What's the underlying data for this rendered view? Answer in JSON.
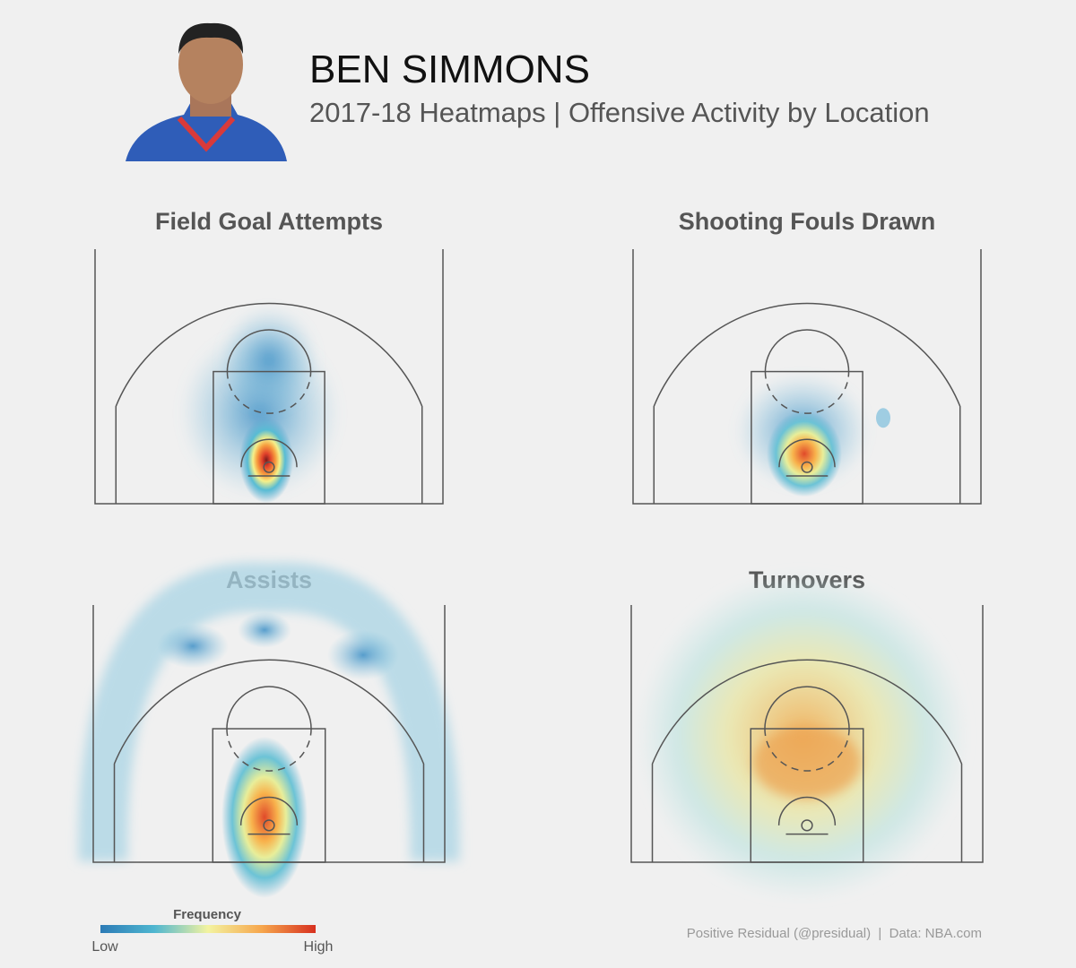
{
  "header": {
    "title": "BEN SIMMONS",
    "subtitle": "2017-18 Heatmaps | Offensive Activity by Location"
  },
  "panels": [
    {
      "title": "Field Goal Attempts"
    },
    {
      "title": "Shooting Fouls Drawn"
    },
    {
      "title": "Assists"
    },
    {
      "title": "Turnovers"
    }
  ],
  "legend": {
    "title": "Frequency",
    "low": "Low",
    "high": "High"
  },
  "credit": "Positive Residual (@presidual)  |  Data: NBA.com"
}
